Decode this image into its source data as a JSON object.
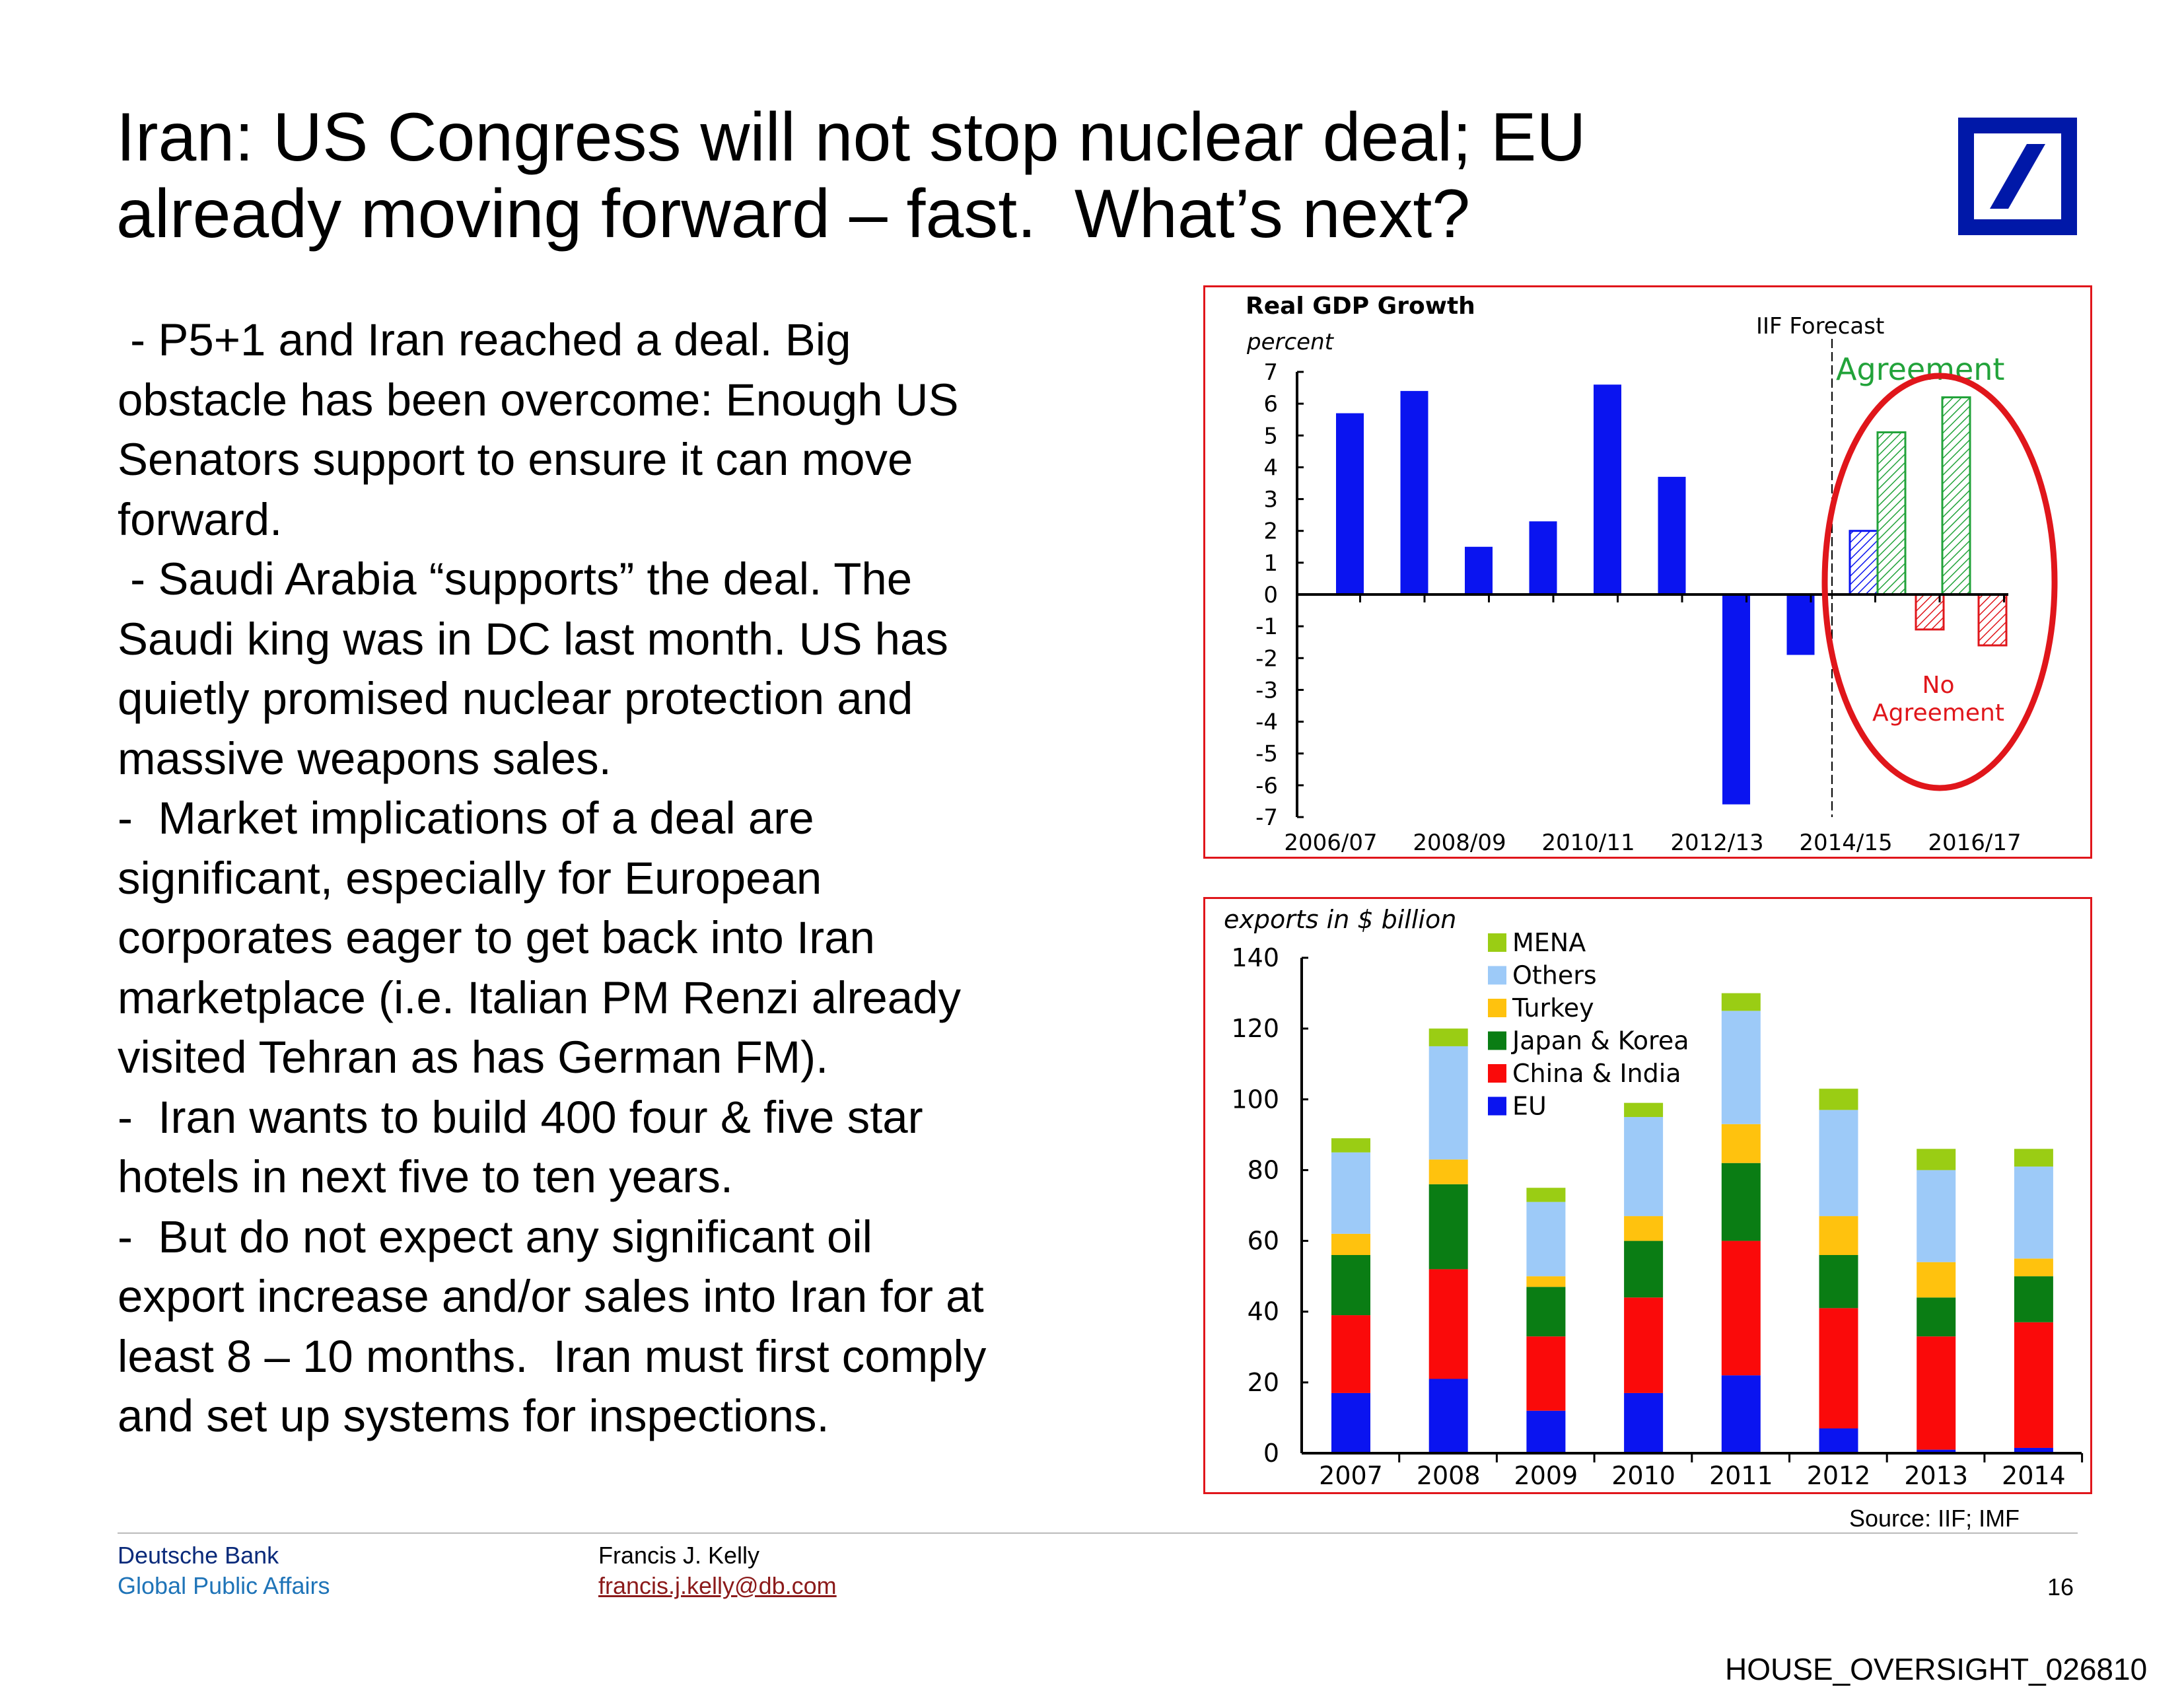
{
  "title": [
    "Iran: US Congress will not stop nuclear deal; EU",
    "already moving forward – fast.  What’s next?"
  ],
  "logo": "Deutsche Bank logo",
  "body_lines": [
    " - P5+1 and Iran reached a deal. Big",
    "obstacle has been overcome: Enough US",
    "Senators support to ensure it can move",
    "forward.",
    " - Saudi Arabia “supports” the deal. The",
    "Saudi king was in DC last month. US has",
    "quietly promised nuclear protection and",
    "massive weapons sales.",
    "-  Market implications of a deal are",
    "significant, especially for European",
    "corporates eager to get back into Iran",
    "marketplace (i.e. Italian PM Renzi already",
    "visited Tehran as has German FM).",
    "-  Iran wants to build 400 four & five star",
    "hotels in next five to ten years.",
    "-  But do not expect any significant oil",
    "export increase and/or sales into Iran for at",
    "least 8 – 10 months.  Iran must first comply",
    "and set up systems for inspections."
  ],
  "chart_data": [
    {
      "type": "bar",
      "title": "Real GDP Growth",
      "ylabel": "percent",
      "ylim": [
        -7,
        7
      ],
      "yticks": [
        "7",
        "6",
        "5",
        "4",
        "3",
        "2",
        "1",
        "0",
        "-1",
        "-2",
        "-3",
        "-4",
        "-5",
        "-6",
        "-7"
      ],
      "xtick_labels": [
        "2006/07",
        "2008/09",
        "2010/11",
        "2012/13",
        "2014/15",
        "2016/17"
      ],
      "categories": [
        "2006/07",
        "2007/08",
        "2008/09",
        "2009/10",
        "2010/11",
        "2011/12",
        "2012/13",
        "2013/14"
      ],
      "values": [
        5.7,
        6.4,
        1.5,
        2.3,
        6.6,
        3.7,
        -6.6,
        -1.9
      ],
      "forecast_label": "IIF  Forecast",
      "forecast": {
        "category": "2014/15",
        "value": 2.0
      },
      "scenarios": [
        {
          "name": "Agreement",
          "color": "#22a33a",
          "values": {
            "2015/16": 5.1,
            "2016/17": 6.2
          }
        },
        {
          "name": "No Agreement",
          "color": "#e0161b",
          "values": {
            "2015/16": -1.1,
            "2016/17": -1.6
          }
        }
      ],
      "annotations": {
        "agreement": "Agreement",
        "no_agreement_1": "No",
        "no_agreement_2": "Agreement"
      },
      "colors": {
        "actual": "#0a14f0",
        "highlight": "#e0161b"
      }
    },
    {
      "type": "bar",
      "stacked": true,
      "ylabel": "exports in $ billion",
      "ylim": [
        0,
        140
      ],
      "yticks": [
        "0",
        "20",
        "40",
        "60",
        "80",
        "100",
        "120",
        "140"
      ],
      "categories": [
        "2007",
        "2008",
        "2009",
        "2010",
        "2011",
        "2012",
        "2013",
        "2014"
      ],
      "series": [
        {
          "name": "EU",
          "color": "#0a14f0",
          "values": [
            17,
            21,
            12,
            17,
            22,
            7,
            1,
            1.5
          ]
        },
        {
          "name": "China & India",
          "color": "#fa0a0a",
          "values": [
            22,
            31,
            21,
            27,
            38,
            34,
            32,
            35.5
          ]
        },
        {
          "name": "Japan & Korea",
          "color": "#0a7d14",
          "values": [
            17,
            24,
            14,
            16,
            22,
            15,
            11,
            13
          ]
        },
        {
          "name": "Turkey",
          "color": "#ffc20e",
          "values": [
            6,
            7,
            3,
            7,
            11,
            11,
            10,
            5
          ]
        },
        {
          "name": "Others",
          "color": "#9dcaf8",
          "values": [
            23,
            32,
            21,
            28,
            32,
            30,
            26,
            26
          ]
        },
        {
          "name": "MENA",
          "color": "#9acd14",
          "values": [
            4,
            5,
            4,
            4,
            5,
            6,
            6,
            5
          ]
        }
      ],
      "legend_order": [
        "MENA",
        "Others",
        "Turkey",
        "Japan & Korea",
        "China & India",
        "EU"
      ],
      "legend": "top-left"
    }
  ],
  "source": "Source: IIF; IMF",
  "footer": {
    "org": "Deutsche Bank",
    "dept": "Global Public Affairs",
    "author": "Francis J. Kelly",
    "email": "francis.j.kelly@db.com",
    "page": "16"
  },
  "bates": "HOUSE_OVERSIGHT_026810"
}
